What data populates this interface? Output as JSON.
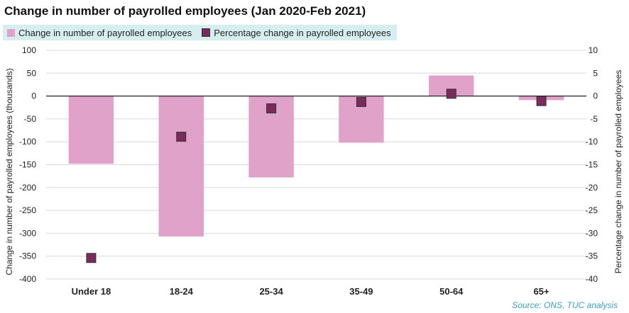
{
  "title": "Change in number of payrolled employees (Jan 2020-Feb 2021)",
  "source": "Source: ONS, TUC analysis",
  "colors": {
    "bar": "#e0a2c8",
    "marker": "#7b2a5c",
    "legend_bg": "#d7eef0",
    "source_text": "#3aa0c8"
  },
  "chart_data": {
    "type": "bar",
    "categories": [
      "Under 18",
      "18-24",
      "25-34",
      "35-49",
      "50-64",
      "65+"
    ],
    "series": [
      {
        "name": "Change in number of payrolled employees",
        "type": "bar",
        "axis": "left",
        "values": [
          -148,
          -307,
          -178,
          -102,
          45,
          -9
        ]
      },
      {
        "name": "Percentage change in payrolled employees",
        "type": "marker",
        "axis": "right",
        "values": [
          -35.4,
          -8.9,
          -2.7,
          -1.3,
          0.5,
          -1.1
        ]
      }
    ],
    "ylabel": "Change in number of payrolled employees (thousands)",
    "y2label": "Percentage change in number of payrolled employees",
    "ylim": [
      -400,
      100
    ],
    "y2lim": [
      -40,
      10
    ],
    "yticks": [
      100,
      50,
      0,
      -50,
      -100,
      -150,
      -200,
      -250,
      -300,
      -350,
      -400
    ],
    "y2ticks": [
      10,
      5,
      0,
      -5,
      -10,
      -15,
      -20,
      -25,
      -30,
      -35,
      -40
    ],
    "grid": true,
    "legend_position": "top-left"
  }
}
